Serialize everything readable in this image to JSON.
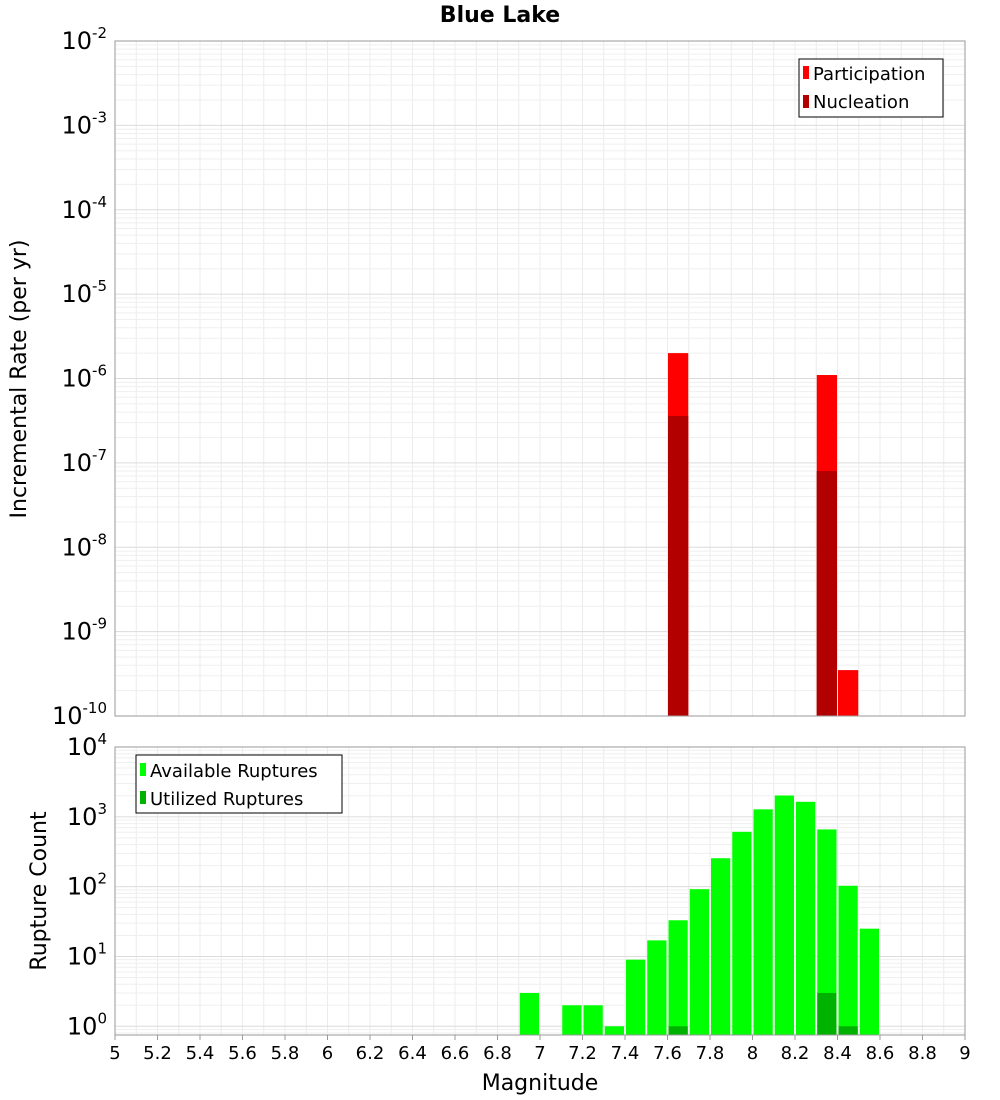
{
  "title": "Blue Lake",
  "chart_data": [
    {
      "type": "bar",
      "name": "rate",
      "ylabel": "Incremental Rate (per yr)",
      "xlabel": "",
      "xlim": [
        5,
        9
      ],
      "ylim": [
        1e-10,
        0.01
      ],
      "y_scale": "log",
      "y_ticks": [
        {
          "base": "10",
          "exp": "-2"
        },
        {
          "base": "10",
          "exp": "-3"
        },
        {
          "base": "10",
          "exp": "-4"
        },
        {
          "base": "10",
          "exp": "-5"
        },
        {
          "base": "10",
          "exp": "-6"
        },
        {
          "base": "10",
          "exp": "-7"
        },
        {
          "base": "10",
          "exp": "-8"
        },
        {
          "base": "10",
          "exp": "-9"
        },
        {
          "base": "10",
          "exp": "-10"
        }
      ],
      "grid": true,
      "legend_position": "top-right",
      "series": [
        {
          "name": "Participation",
          "color": "#ff0000",
          "points": [
            {
              "x": 7.65,
              "y": 2e-06
            },
            {
              "x": 8.35,
              "y": 1.1e-06
            },
            {
              "x": 8.45,
              "y": 3.5e-10
            }
          ]
        },
        {
          "name": "Nucleation",
          "color": "#b20000",
          "points": [
            {
              "x": 7.65,
              "y": 3.6e-07
            },
            {
              "x": 8.35,
              "y": 8e-08
            }
          ]
        }
      ]
    },
    {
      "type": "bar",
      "name": "count",
      "ylabel": "Rupture Count",
      "xlabel": "Magnitude",
      "xlim": [
        5,
        9
      ],
      "ylim": [
        0.75,
        10000
      ],
      "y_scale": "log",
      "y_ticks": [
        {
          "base": "10",
          "exp": "4"
        },
        {
          "base": "10",
          "exp": "3"
        },
        {
          "base": "10",
          "exp": "2"
        },
        {
          "base": "10",
          "exp": "1"
        },
        {
          "base": "10",
          "exp": "0"
        }
      ],
      "x_ticks": [
        "5",
        "5.2",
        "5.4",
        "5.6",
        "5.8",
        "6",
        "6.2",
        "6.4",
        "6.6",
        "6.8",
        "7",
        "7.2",
        "7.4",
        "7.6",
        "7.8",
        "8",
        "8.2",
        "8.4",
        "8.6",
        "8.8",
        "9"
      ],
      "grid": true,
      "legend_position": "top-left",
      "series": [
        {
          "name": "Available Ruptures",
          "color": "#00ff00",
          "points": [
            {
              "x": 6.95,
              "y": 3
            },
            {
              "x": 7.15,
              "y": 2
            },
            {
              "x": 7.25,
              "y": 2
            },
            {
              "x": 7.35,
              "y": 1
            },
            {
              "x": 7.45,
              "y": 9
            },
            {
              "x": 7.55,
              "y": 17
            },
            {
              "x": 7.65,
              "y": 33
            },
            {
              "x": 7.75,
              "y": 92
            },
            {
              "x": 7.85,
              "y": 255
            },
            {
              "x": 7.95,
              "y": 610
            },
            {
              "x": 8.05,
              "y": 1280
            },
            {
              "x": 8.15,
              "y": 2020
            },
            {
              "x": 8.25,
              "y": 1640
            },
            {
              "x": 8.35,
              "y": 660
            },
            {
              "x": 8.45,
              "y": 103
            },
            {
              "x": 8.55,
              "y": 25
            }
          ]
        },
        {
          "name": "Utilized Ruptures",
          "color": "#00b200",
          "points": [
            {
              "x": 7.65,
              "y": 1
            },
            {
              "x": 8.35,
              "y": 3
            },
            {
              "x": 8.45,
              "y": 1
            }
          ]
        }
      ]
    }
  ]
}
